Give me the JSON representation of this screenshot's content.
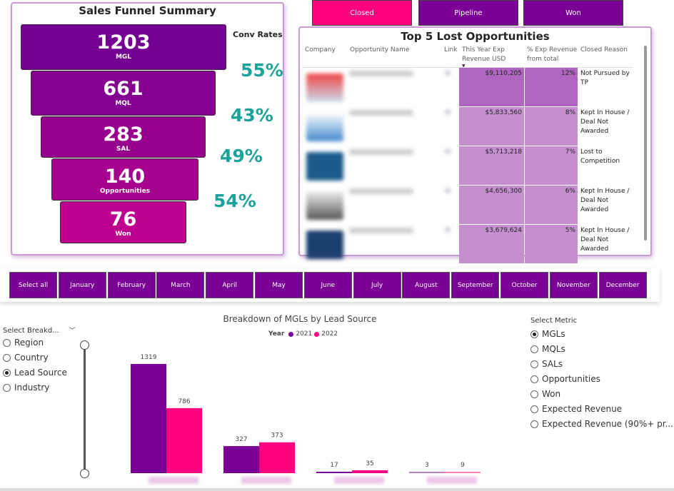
{
  "funnel": {
    "title": "Sales Funnel Summary",
    "conv_label": "Conv Rates",
    "stages": [
      {
        "value": "1203",
        "label": "MGL"
      },
      {
        "value": "661",
        "label": "MQL"
      },
      {
        "value": "283",
        "label": "SAL"
      },
      {
        "value": "140",
        "label": "Opportunities"
      },
      {
        "value": "76",
        "label": "Won"
      }
    ],
    "rates": [
      "55%",
      "43%",
      "49%",
      "54%"
    ],
    "colors": [
      "#730091",
      "#84008f",
      "#97008d",
      "#a6008e",
      "#bd008d"
    ]
  },
  "status_buttons": [
    {
      "label": "Closed",
      "color": "#ff0080"
    },
    {
      "label": "Pipeline",
      "color": "#7a0095"
    },
    {
      "label": "Won",
      "color": "#7a0095"
    }
  ],
  "table": {
    "title": "Top 5 Lost Opportunities",
    "columns": [
      "Company",
      "Opportunity Name",
      "Link",
      "This Year Exp Revenue USD",
      "% Exp Revenue from total",
      "Closed Reason"
    ],
    "rows": [
      {
        "revenue": "$9,110,205",
        "pct": "12%",
        "reason": "Not Pursued by TP"
      },
      {
        "revenue": "$5,833,560",
        "pct": "8%",
        "reason": "Kept In House / Deal Not Awarded"
      },
      {
        "revenue": "$5,713,218",
        "pct": "7%",
        "reason": "Lost to Competition"
      },
      {
        "revenue": "$4,656,300",
        "pct": "6%",
        "reason": "Kept In House / Deal Not Awarded"
      },
      {
        "revenue": "$3,679,624",
        "pct": "5%",
        "reason": "Kept In House / Deal Not Awarded"
      }
    ]
  },
  "months": [
    "Select all",
    "January",
    "February",
    "March",
    "April",
    "May",
    "June",
    "July",
    "August",
    "September",
    "October",
    "November",
    "December"
  ],
  "breakdown": {
    "label": "Select Breakd...",
    "options": [
      "Region",
      "Country",
      "Lead Source",
      "Industry"
    ],
    "selected": "Lead Source"
  },
  "metric": {
    "label": "Select Metric",
    "options": [
      "MGLs",
      "MQLs",
      "SALs",
      "Opportunities",
      "Won",
      "Expected Revenue",
      "Expected Revenue (90%+ pr..."
    ],
    "selected": "MGLs"
  },
  "chart_data": {
    "type": "bar",
    "title": "Breakdown of MGLs by Lead Source",
    "legend_title": "Year",
    "legend_position": "top",
    "series": [
      {
        "name": "2021",
        "color": "#7a0095",
        "values": [
          1319,
          327,
          17,
          3
        ]
      },
      {
        "name": "2022",
        "color": "#ff0080",
        "values": [
          786,
          373,
          35,
          9
        ]
      }
    ]
  }
}
